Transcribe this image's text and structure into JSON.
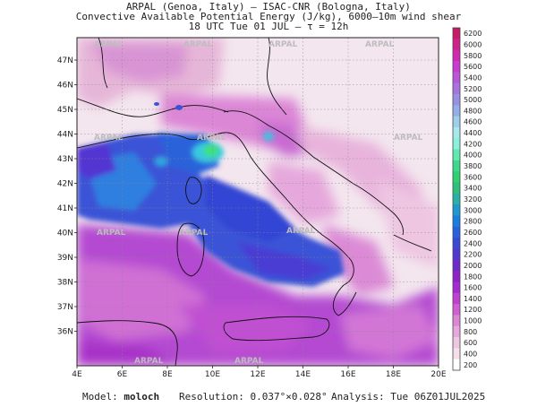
{
  "header": {
    "line1": "ARPAL (Genoa, Italy)  –  ISAC-CNR (Bologna, Italy)",
    "line2": "Convective Available Potential Energy (J/kg), 6000–10m wind shear",
    "line3": "18 UTC Tue 01 JUL  –  τ = 12h"
  },
  "map": {
    "lat_labels": [
      "47N",
      "46N",
      "45N",
      "44N",
      "43N",
      "42N",
      "41N",
      "40N",
      "39N",
      "38N",
      "37N",
      "36N"
    ],
    "lon_labels": [
      "4E",
      "6E",
      "8E",
      "10E",
      "12E",
      "14E",
      "16E",
      "18E",
      "20E"
    ],
    "watermarks": [
      "ARPAL",
      "ARPAL",
      "ARPAL",
      "ARPAL",
      "ARPAL",
      "ARPAL",
      "ARPAL",
      "ARPAL",
      "ARPAL",
      "ARPAL",
      "ARPAL",
      "ARPAL"
    ],
    "colors": {
      "sea_blue": "#3a52d6",
      "cape_purple": "#a62ad0",
      "cape_magenta": "#d36ad6",
      "cape_pink": "#e6b6d8",
      "land_light": "#f4eaf0",
      "cyan": "#37c8e0",
      "green": "#3fe07a"
    }
  },
  "colorbar": {
    "labels": [
      "6200",
      "6000",
      "5800",
      "5600",
      "5400",
      "5200",
      "5000",
      "4800",
      "4600",
      "4400",
      "4200",
      "4000",
      "3800",
      "3600",
      "3400",
      "3200",
      "3000",
      "2800",
      "2600",
      "2400",
      "2200",
      "2000",
      "1800",
      "1600",
      "1400",
      "1200",
      "1000",
      "800",
      "600",
      "400",
      "200"
    ],
    "colors": [
      "#c91a6a",
      "#d0208a",
      "#d02ab0",
      "#c83ccf",
      "#b957d8",
      "#a873de",
      "#9a90e2",
      "#95aee6",
      "#9fcdea",
      "#a6e8ec",
      "#8af0d8",
      "#5fe8b0",
      "#3cd88c",
      "#2ed070",
      "#2ec07a",
      "#2ab0a8",
      "#1e98d0",
      "#1a7ee0",
      "#2860de",
      "#3a48d8",
      "#5236d2",
      "#7028cc",
      "#8c22c8",
      "#a62ad0",
      "#c040d0",
      "#d060d2",
      "#dc86d6",
      "#e6a8dc",
      "#eec6e2",
      "#f5dfea",
      "#ffffff"
    ]
  },
  "footer": {
    "model_label": "Model:",
    "model_value": "moloch",
    "resolution_label": "Resolution:",
    "resolution_value": "0.037°×0.028°",
    "analysis_label": "Analysis:",
    "analysis_value": "Tue 06Z01JUL2025"
  }
}
